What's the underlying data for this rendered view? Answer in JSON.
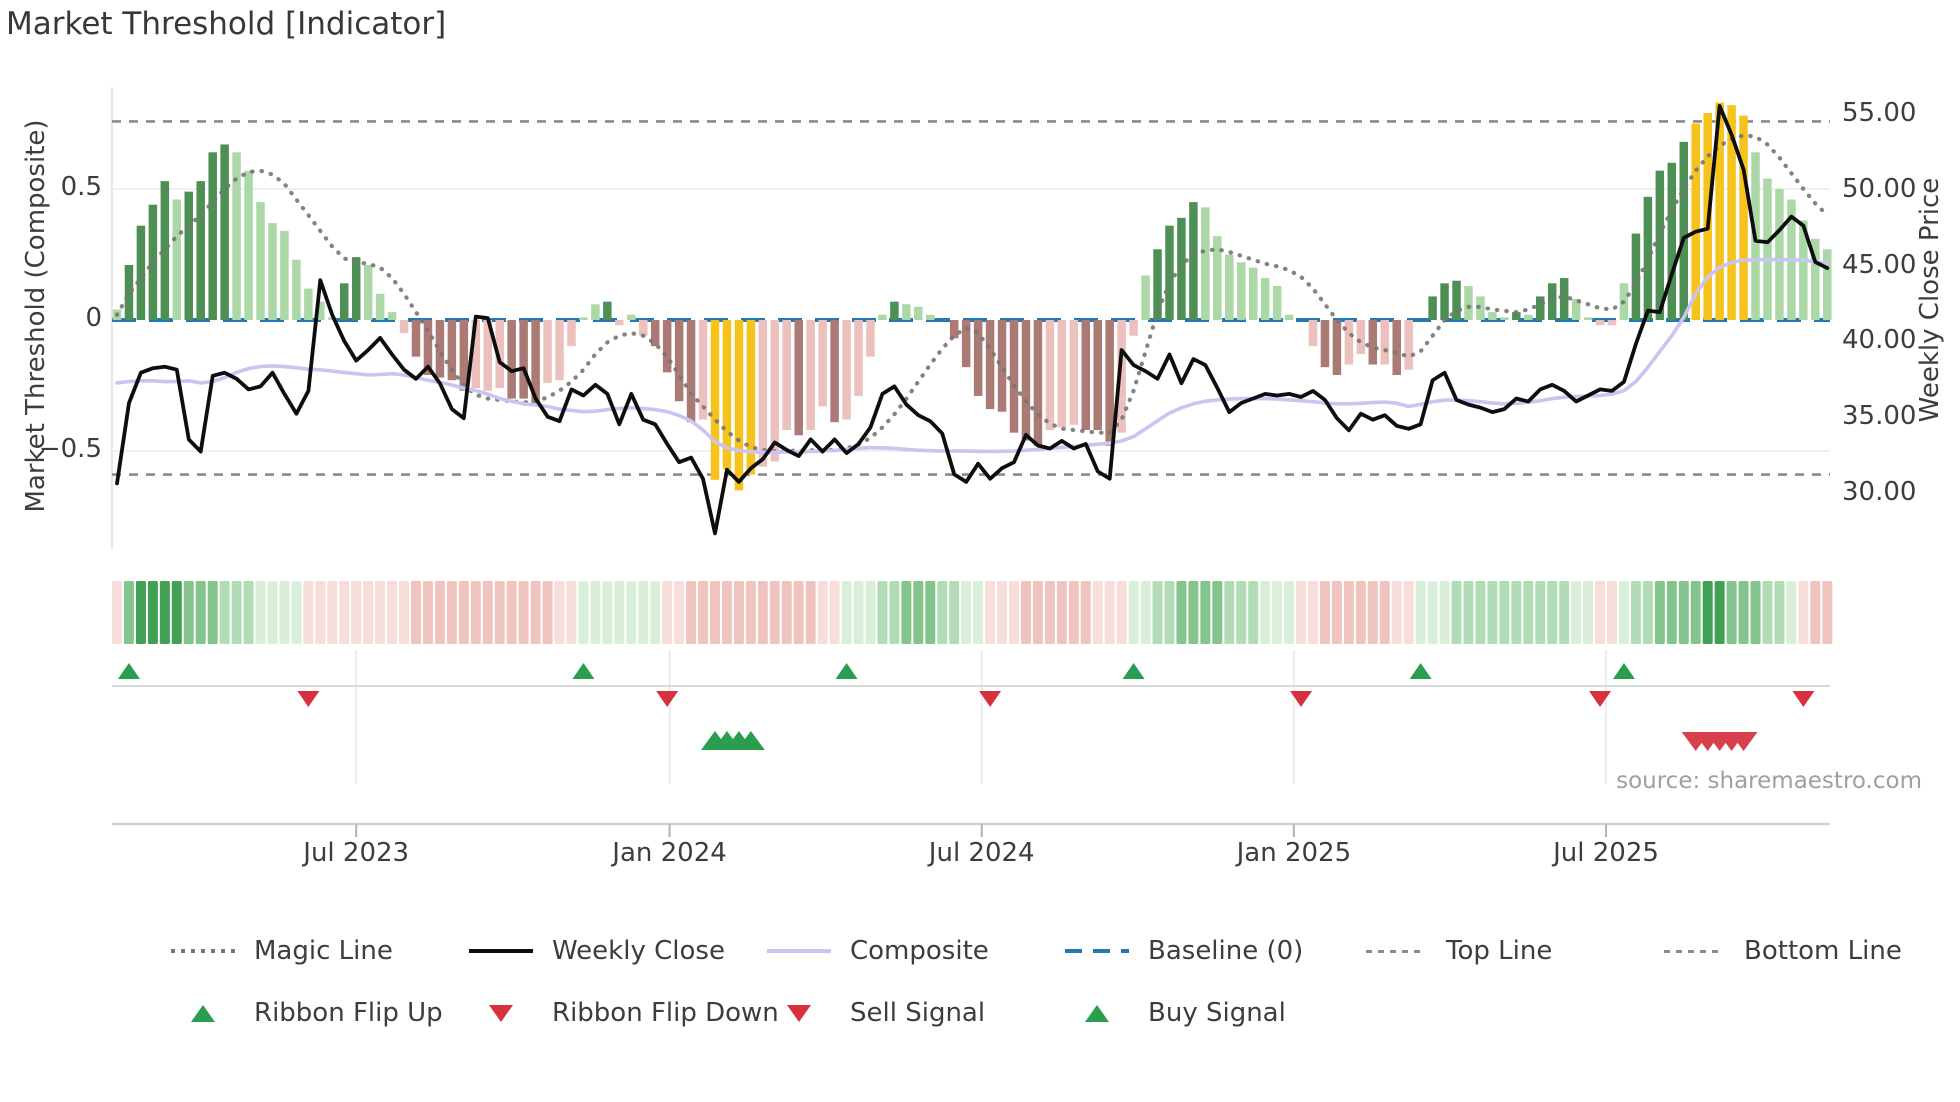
{
  "title": "Market Threshold [Indicator]",
  "source": "source: sharemaestro.com",
  "axes": {
    "left_label": "Market Threshold (Composite)",
    "right_label": "Weekly Close Price",
    "left_ticks": [
      {
        "label": "0.5",
        "value": 0.5
      },
      {
        "label": "0",
        "value": 0
      },
      {
        "label": "−0.5",
        "value": -0.5
      }
    ],
    "right_ticks": [
      {
        "label": "55.00",
        "value": 55
      },
      {
        "label": "50.00",
        "value": 50
      },
      {
        "label": "45.00",
        "value": 45
      },
      {
        "label": "40.00",
        "value": 40
      },
      {
        "label": "35.00",
        "value": 35
      },
      {
        "label": "30.00",
        "value": 30
      }
    ],
    "x_ticks": [
      {
        "label": "Jul 2023",
        "week": 20.0
      },
      {
        "label": "Jan 2024",
        "week": 46.2
      },
      {
        "label": "Jul 2024",
        "week": 72.3
      },
      {
        "label": "Jan 2025",
        "week": 98.4
      },
      {
        "label": "Jul 2025",
        "week": 124.5
      }
    ]
  },
  "legend": {
    "magic": "Magic Line",
    "weekly": "Weekly Close",
    "composite": "Composite",
    "baseline": "Baseline (0)",
    "top": "Top Line",
    "bottom": "Bottom Line",
    "flip_up": "Ribbon Flip Up",
    "flip_down": "Ribbon Flip Down",
    "sell": "Sell Signal",
    "buy": "Buy Signal"
  },
  "colors": {
    "dark_green": "#4e8f55",
    "light_green": "#abd8a6",
    "dark_red": "#ab7a74",
    "light_red": "#ecc0bc",
    "highlight_yellow": "#f6c21c",
    "weekly_close": "#0e0e0e",
    "composite_line": "#c9c4f0",
    "magic_line": "#767676",
    "baseline": "#2579b2",
    "threshold_lines": "#8a8a8a",
    "flip_up": "#2a9d4e",
    "flip_down": "#d7303f",
    "buy": "#2a9d4e",
    "sell": "#d9404d",
    "ribbon_green": [
      "#d9efda",
      "#b2dcb6",
      "#84c48d",
      "#41a054"
    ],
    "ribbon_pink": [
      "#f7dedb",
      "#efc4bf",
      "#e6a9a3",
      "#dd8d85"
    ]
  },
  "chart_data": {
    "type": "bar",
    "subtype": "weekly composite threshold indicator with price overlay",
    "x_unit": "week",
    "weeks": 144,
    "left_axis_range": [
      -0.89,
      0.89
    ],
    "right_axis_range": [
      26.5,
      56.5
    ],
    "baseline_value": 0,
    "top_line_value": 0.758,
    "bottom_line_value": -0.59,
    "grid": "horizontal at 0.5 and -0.5",
    "legend_position": "bottom, two rows",
    "bars": [
      [
        0.04,
        "lg"
      ],
      [
        0.21,
        "dg"
      ],
      [
        0.36,
        "dg"
      ],
      [
        0.44,
        "dg"
      ],
      [
        0.53,
        "dg"
      ],
      [
        0.46,
        "lg"
      ],
      [
        0.49,
        "dg"
      ],
      [
        0.53,
        "dg"
      ],
      [
        0.64,
        "dg"
      ],
      [
        0.67,
        "dg"
      ],
      [
        0.64,
        "lg"
      ],
      [
        0.57,
        "lg"
      ],
      [
        0.45,
        "lg"
      ],
      [
        0.37,
        "lg"
      ],
      [
        0.34,
        "lg"
      ],
      [
        0.23,
        "lg"
      ],
      [
        0.12,
        "lg"
      ],
      [
        0.07,
        "lg"
      ],
      [
        0.01,
        "lg"
      ],
      [
        0.14,
        "dg"
      ],
      [
        0.24,
        "dg"
      ],
      [
        0.21,
        "lg"
      ],
      [
        0.1,
        "lg"
      ],
      [
        0.03,
        "lg"
      ],
      [
        -0.05,
        "lr"
      ],
      [
        -0.14,
        "dr"
      ],
      [
        -0.21,
        "dr"
      ],
      [
        -0.22,
        "dr"
      ],
      [
        -0.23,
        "dr"
      ],
      [
        -0.27,
        "dr"
      ],
      [
        -0.26,
        "lr"
      ],
      [
        -0.27,
        "lr"
      ],
      [
        -0.26,
        "lr"
      ],
      [
        -0.3,
        "dr"
      ],
      [
        -0.3,
        "dr"
      ],
      [
        -0.33,
        "dr"
      ],
      [
        -0.24,
        "lr"
      ],
      [
        -0.23,
        "lr"
      ],
      [
        -0.1,
        "lr"
      ],
      [
        0.01,
        "lg"
      ],
      [
        0.06,
        "lg"
      ],
      [
        0.07,
        "dg"
      ],
      [
        -0.02,
        "lr"
      ],
      [
        0.02,
        "lg"
      ],
      [
        -0.06,
        "lr"
      ],
      [
        -0.1,
        "dr"
      ],
      [
        -0.2,
        "dr"
      ],
      [
        -0.31,
        "dr"
      ],
      [
        -0.39,
        "dr"
      ],
      [
        -0.38,
        "lr"
      ],
      [
        -0.61,
        "y"
      ],
      [
        -0.57,
        "y"
      ],
      [
        -0.65,
        "y"
      ],
      [
        -0.59,
        "y"
      ],
      [
        -0.56,
        "lr"
      ],
      [
        -0.54,
        "lr"
      ],
      [
        -0.42,
        "lr"
      ],
      [
        -0.44,
        "dr"
      ],
      [
        -0.42,
        "lr"
      ],
      [
        -0.33,
        "lr"
      ],
      [
        -0.39,
        "dr"
      ],
      [
        -0.38,
        "lr"
      ],
      [
        -0.29,
        "lr"
      ],
      [
        -0.14,
        "lr"
      ],
      [
        0.02,
        "lg"
      ],
      [
        0.07,
        "dg"
      ],
      [
        0.06,
        "lg"
      ],
      [
        0.05,
        "lg"
      ],
      [
        0.02,
        "lg"
      ],
      [
        0.0,
        "lg"
      ],
      [
        -0.07,
        "dr"
      ],
      [
        -0.18,
        "dr"
      ],
      [
        -0.29,
        "dr"
      ],
      [
        -0.34,
        "dr"
      ],
      [
        -0.35,
        "dr"
      ],
      [
        -0.43,
        "dr"
      ],
      [
        -0.46,
        "dr"
      ],
      [
        -0.48,
        "dr"
      ],
      [
        -0.42,
        "lr"
      ],
      [
        -0.41,
        "lr"
      ],
      [
        -0.4,
        "lr"
      ],
      [
        -0.42,
        "dr"
      ],
      [
        -0.42,
        "dr"
      ],
      [
        -0.48,
        "dr"
      ],
      [
        -0.43,
        "lr"
      ],
      [
        -0.06,
        "lr"
      ],
      [
        0.17,
        "lg"
      ],
      [
        0.27,
        "dg"
      ],
      [
        0.36,
        "dg"
      ],
      [
        0.39,
        "dg"
      ],
      [
        0.45,
        "dg"
      ],
      [
        0.43,
        "lg"
      ],
      [
        0.32,
        "lg"
      ],
      [
        0.25,
        "lg"
      ],
      [
        0.22,
        "lg"
      ],
      [
        0.2,
        "lg"
      ],
      [
        0.16,
        "lg"
      ],
      [
        0.13,
        "lg"
      ],
      [
        0.02,
        "lg"
      ],
      [
        0.0,
        "lg"
      ],
      [
        -0.1,
        "lr"
      ],
      [
        -0.18,
        "dr"
      ],
      [
        -0.21,
        "dr"
      ],
      [
        -0.17,
        "lr"
      ],
      [
        -0.13,
        "lr"
      ],
      [
        -0.17,
        "dr"
      ],
      [
        -0.17,
        "lr"
      ],
      [
        -0.21,
        "dr"
      ],
      [
        -0.19,
        "lr"
      ],
      [
        0.0,
        "lg"
      ],
      [
        0.09,
        "dg"
      ],
      [
        0.14,
        "dg"
      ],
      [
        0.15,
        "dg"
      ],
      [
        0.13,
        "lg"
      ],
      [
        0.09,
        "lg"
      ],
      [
        0.03,
        "lg"
      ],
      [
        0.01,
        "lg"
      ],
      [
        0.03,
        "dg"
      ],
      [
        0.02,
        "lg"
      ],
      [
        0.09,
        "dg"
      ],
      [
        0.14,
        "dg"
      ],
      [
        0.16,
        "dg"
      ],
      [
        0.08,
        "lg"
      ],
      [
        0.01,
        "lg"
      ],
      [
        -0.02,
        "lr"
      ],
      [
        -0.02,
        "lr"
      ],
      [
        0.14,
        "lg"
      ],
      [
        0.33,
        "dg"
      ],
      [
        0.47,
        "dg"
      ],
      [
        0.57,
        "dg"
      ],
      [
        0.6,
        "dg"
      ],
      [
        0.68,
        "dg"
      ],
      [
        0.75,
        "y"
      ],
      [
        0.79,
        "y"
      ],
      [
        0.83,
        "y"
      ],
      [
        0.82,
        "y"
      ],
      [
        0.78,
        "y"
      ],
      [
        0.64,
        "lg"
      ],
      [
        0.54,
        "lg"
      ],
      [
        0.5,
        "lg"
      ],
      [
        0.46,
        "lg"
      ],
      [
        0.38,
        "lg"
      ],
      [
        0.31,
        "lg"
      ],
      [
        0.27,
        "lg"
      ]
    ],
    "weekly_close": [
      30.7,
      36.0,
      38.0,
      38.3,
      38.4,
      38.2,
      33.6,
      32.8,
      37.8,
      38.0,
      37.6,
      36.9,
      37.1,
      38.0,
      36.6,
      35.3,
      36.8,
      44.1,
      41.8,
      40.1,
      38.8,
      39.5,
      40.3,
      39.2,
      38.2,
      37.6,
      38.4,
      37.3,
      35.6,
      35.0,
      41.7,
      41.6,
      38.7,
      38.1,
      38.3,
      36.3,
      35.1,
      34.8,
      36.9,
      36.5,
      37.2,
      36.6,
      34.6,
      36.6,
      34.9,
      34.6,
      33.3,
      32.1,
      32.4,
      31.0,
      27.4,
      31.6,
      30.8,
      31.7,
      32.3,
      33.4,
      32.9,
      32.5,
      33.6,
      32.8,
      33.6,
      32.7,
      33.3,
      34.4,
      36.6,
      37.1,
      35.9,
      35.2,
      34.8,
      34.0,
      31.3,
      30.8,
      32.0,
      31.0,
      31.7,
      32.1,
      33.9,
      33.2,
      33.0,
      33.5,
      33.0,
      33.3,
      31.5,
      31.0,
      39.5,
      38.5,
      38.1,
      37.6,
      39.2,
      37.3,
      38.9,
      38.5,
      37.0,
      35.4,
      36.0,
      36.3,
      36.6,
      36.5,
      36.6,
      36.4,
      36.8,
      36.2,
      35.0,
      34.2,
      35.3,
      34.9,
      35.2,
      34.5,
      34.3,
      34.6,
      37.5,
      38.0,
      36.2,
      35.9,
      35.7,
      35.4,
      35.6,
      36.3,
      36.1,
      36.9,
      37.2,
      36.8,
      36.1,
      36.5,
      36.9,
      36.8,
      37.4,
      39.9,
      42.1,
      42.0,
      44.5,
      46.9,
      47.3,
      47.5,
      55.6,
      53.7,
      51.4,
      46.7,
      46.6,
      47.4,
      48.3,
      47.7,
      45.3,
      44.9
    ],
    "magic_line": [
      0.02,
      0.1,
      0.16,
      0.22,
      0.27,
      0.32,
      0.36,
      0.4,
      0.45,
      0.5,
      0.54,
      0.565,
      0.57,
      0.555,
      0.52,
      0.46,
      0.4,
      0.34,
      0.28,
      0.235,
      0.22,
      0.215,
      0.2,
      0.16,
      0.1,
      0.03,
      -0.04,
      -0.12,
      -0.19,
      -0.25,
      -0.285,
      -0.3,
      -0.305,
      -0.31,
      -0.315,
      -0.31,
      -0.295,
      -0.27,
      -0.235,
      -0.19,
      -0.13,
      -0.085,
      -0.06,
      -0.05,
      -0.06,
      -0.09,
      -0.14,
      -0.21,
      -0.28,
      -0.33,
      -0.38,
      -0.425,
      -0.46,
      -0.485,
      -0.496,
      -0.5,
      -0.5,
      -0.498,
      -0.497,
      -0.497,
      -0.496,
      -0.49,
      -0.475,
      -0.45,
      -0.41,
      -0.36,
      -0.3,
      -0.235,
      -0.17,
      -0.11,
      -0.06,
      -0.03,
      -0.05,
      -0.11,
      -0.18,
      -0.25,
      -0.31,
      -0.36,
      -0.395,
      -0.415,
      -0.42,
      -0.425,
      -0.43,
      -0.43,
      -0.38,
      -0.27,
      -0.12,
      0.03,
      0.14,
      0.21,
      0.25,
      0.265,
      0.27,
      0.26,
      0.245,
      0.23,
      0.215,
      0.205,
      0.19,
      0.165,
      0.12,
      0.06,
      0.0,
      -0.05,
      -0.085,
      -0.105,
      -0.115,
      -0.125,
      -0.14,
      -0.12,
      -0.06,
      0.0,
      0.035,
      0.05,
      0.05,
      0.04,
      0.035,
      0.03,
      0.04,
      0.06,
      0.08,
      0.09,
      0.075,
      0.06,
      0.045,
      0.04,
      0.07,
      0.14,
      0.23,
      0.33,
      0.42,
      0.5,
      0.57,
      0.625,
      0.665,
      0.69,
      0.705,
      0.7,
      0.67,
      0.62,
      0.56,
      0.5,
      0.445,
      0.4
    ],
    "composite_line": [
      -0.24,
      -0.235,
      -0.232,
      -0.232,
      -0.235,
      -0.235,
      -0.232,
      -0.24,
      -0.235,
      -0.22,
      -0.2,
      -0.185,
      -0.178,
      -0.175,
      -0.178,
      -0.182,
      -0.188,
      -0.19,
      -0.195,
      -0.2,
      -0.205,
      -0.21,
      -0.208,
      -0.205,
      -0.21,
      -0.22,
      -0.23,
      -0.238,
      -0.248,
      -0.26,
      -0.27,
      -0.283,
      -0.3,
      -0.31,
      -0.32,
      -0.325,
      -0.33,
      -0.34,
      -0.345,
      -0.35,
      -0.348,
      -0.342,
      -0.338,
      -0.335,
      -0.338,
      -0.342,
      -0.35,
      -0.365,
      -0.385,
      -0.42,
      -0.465,
      -0.488,
      -0.498,
      -0.503,
      -0.505,
      -0.505,
      -0.504,
      -0.503,
      -0.502,
      -0.5,
      -0.498,
      -0.494,
      -0.49,
      -0.487,
      -0.488,
      -0.49,
      -0.494,
      -0.497,
      -0.499,
      -0.5,
      -0.5,
      -0.5,
      -0.501,
      -0.502,
      -0.501,
      -0.5,
      -0.497,
      -0.494,
      -0.49,
      -0.486,
      -0.482,
      -0.478,
      -0.474,
      -0.47,
      -0.462,
      -0.445,
      -0.415,
      -0.385,
      -0.355,
      -0.335,
      -0.32,
      -0.31,
      -0.305,
      -0.302,
      -0.3,
      -0.3,
      -0.3,
      -0.302,
      -0.305,
      -0.308,
      -0.312,
      -0.317,
      -0.32,
      -0.32,
      -0.318,
      -0.315,
      -0.313,
      -0.318,
      -0.33,
      -0.322,
      -0.312,
      -0.306,
      -0.305,
      -0.308,
      -0.312,
      -0.317,
      -0.32,
      -0.318,
      -0.314,
      -0.308,
      -0.3,
      -0.295,
      -0.292,
      -0.29,
      -0.288,
      -0.283,
      -0.27,
      -0.235,
      -0.18,
      -0.12,
      -0.06,
      0.01,
      0.1,
      0.165,
      0.2,
      0.22,
      0.228,
      0.23,
      0.23,
      0.23,
      0.23,
      0.228,
      0.222,
      0.215
    ],
    "ribbon": [
      -1,
      3,
      4,
      4,
      4,
      4,
      3,
      3,
      3,
      2,
      2,
      2,
      1,
      1,
      1,
      1,
      -1,
      -1,
      -1,
      -1,
      -1,
      -1,
      -1,
      -1,
      -1,
      -2,
      -2,
      -2,
      -2,
      -2,
      -2,
      -2,
      -2,
      -2,
      -2,
      -2,
      -2,
      -1,
      -1,
      1,
      1,
      1,
      1,
      1,
      1,
      1,
      -1,
      -1,
      -2,
      -2,
      -2,
      -2,
      -2,
      -2,
      -2,
      -2,
      -2,
      -2,
      -2,
      -1,
      -1,
      1,
      1,
      1,
      2,
      2,
      3,
      3,
      3,
      2,
      2,
      1,
      1,
      -1,
      -1,
      -1,
      -2,
      -2,
      -2,
      -2,
      -2,
      -2,
      -1,
      -1,
      -1,
      1,
      1,
      2,
      2,
      3,
      3,
      3,
      3,
      2,
      2,
      2,
      1,
      1,
      1,
      -1,
      -1,
      -2,
      -2,
      -2,
      -2,
      -2,
      -2,
      -1,
      -1,
      1,
      1,
      1,
      2,
      2,
      2,
      2,
      2,
      2,
      2,
      2,
      2,
      2,
      1,
      1,
      -1,
      -1,
      1,
      2,
      2,
      3,
      3,
      3,
      3,
      4,
      4,
      3,
      3,
      3,
      2,
      2,
      1,
      -1,
      -2,
      -2
    ],
    "signals": {
      "flip_up_weeks": [
        1,
        39,
        61,
        85,
        109,
        126
      ],
      "flip_down_weeks": [
        16,
        46,
        73,
        99,
        124,
        141
      ],
      "buy_weeks": [
        50,
        51,
        52,
        53
      ],
      "sell_weeks": [
        132,
        133,
        134,
        135,
        136
      ]
    }
  }
}
